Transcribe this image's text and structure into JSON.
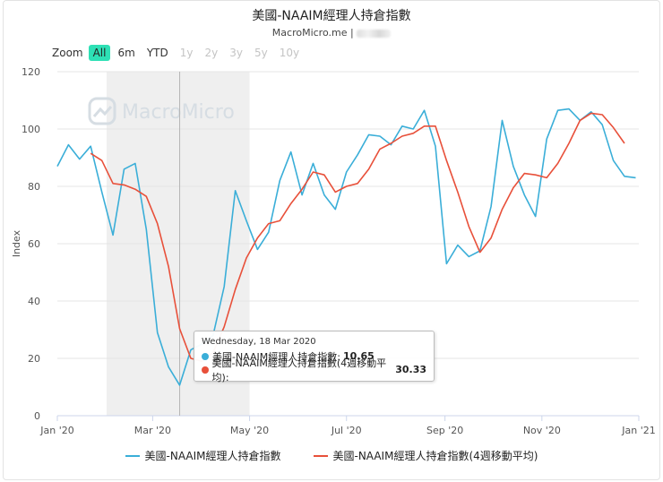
{
  "header": {
    "title": "美國-NAAIM經理人持倉指數",
    "subtitle": "MacroMicro.me |"
  },
  "zoom": {
    "label": "Zoom",
    "buttons": [
      {
        "label": "All",
        "state": "active"
      },
      {
        "label": "6m",
        "state": "normal"
      },
      {
        "label": "YTD",
        "state": "normal"
      },
      {
        "label": "1y",
        "state": "disabled"
      },
      {
        "label": "2y",
        "state": "disabled"
      },
      {
        "label": "3y",
        "state": "disabled"
      },
      {
        "label": "5y",
        "state": "disabled"
      },
      {
        "label": "10y",
        "state": "disabled"
      }
    ]
  },
  "watermark": "MacroMicro",
  "tooltip": {
    "date": "Wednesday, 18 Mar 2020",
    "rows": [
      {
        "label": "美國-NAAIM經理人持倉指數:",
        "value": "10.65",
        "color": "#3aaed8"
      },
      {
        "label": "美國-NAAIM經理人持倉指數(4週移動平均):",
        "value": "30.33",
        "color": "#e8503a"
      }
    ]
  },
  "chart_data": {
    "type": "line",
    "ylabel": "Index",
    "ylim": [
      0,
      120
    ],
    "yticks": [
      0,
      20,
      40,
      60,
      80,
      100,
      120
    ],
    "xlim": [
      "2020-01-01",
      "2021-01-01"
    ],
    "xticks": [
      {
        "date": "2020-01-01",
        "label": "Jan '20"
      },
      {
        "date": "2020-03-01",
        "label": "Mar '20"
      },
      {
        "date": "2020-05-01",
        "label": "May '20"
      },
      {
        "date": "2020-07-01",
        "label": "Jul '20"
      },
      {
        "date": "2020-09-01",
        "label": "Sep '20"
      },
      {
        "date": "2020-11-01",
        "label": "Nov '20"
      },
      {
        "date": "2021-01-01",
        "label": "Jan '21"
      }
    ],
    "shaded_range": [
      "2020-02-01",
      "2020-05-01"
    ],
    "crosshair_x": "2020-03-18",
    "dates": [
      "2020-01-01",
      "2020-01-08",
      "2020-01-15",
      "2020-01-22",
      "2020-01-29",
      "2020-02-05",
      "2020-02-12",
      "2020-02-19",
      "2020-02-26",
      "2020-03-04",
      "2020-03-11",
      "2020-03-18",
      "2020-03-25",
      "2020-04-01",
      "2020-04-08",
      "2020-04-15",
      "2020-04-22",
      "2020-04-29",
      "2020-05-06",
      "2020-05-13",
      "2020-05-20",
      "2020-05-27",
      "2020-06-03",
      "2020-06-10",
      "2020-06-17",
      "2020-06-24",
      "2020-07-01",
      "2020-07-08",
      "2020-07-15",
      "2020-07-22",
      "2020-07-29",
      "2020-08-05",
      "2020-08-12",
      "2020-08-19",
      "2020-08-26",
      "2020-09-02",
      "2020-09-09",
      "2020-09-16",
      "2020-09-23",
      "2020-09-30",
      "2020-10-07",
      "2020-10-14",
      "2020-10-21",
      "2020-10-28",
      "2020-11-04",
      "2020-11-11",
      "2020-11-18",
      "2020-11-25",
      "2020-12-02",
      "2020-12-09",
      "2020-12-16",
      "2020-12-23",
      "2020-12-30"
    ],
    "series": [
      {
        "name": "美國-NAAIM經理人持倉指數",
        "color": "#3aaed8",
        "values": [
          87,
          94.5,
          89.5,
          94,
          78,
          63,
          86,
          88,
          65,
          29,
          17,
          10.65,
          23,
          25,
          28,
          45,
          78.5,
          68,
          58,
          64,
          82,
          92,
          77,
          88,
          77,
          72,
          85,
          91,
          98,
          97.5,
          94.5,
          101,
          100,
          106.5,
          94,
          53,
          59.5,
          55.5,
          57.5,
          73,
          103,
          87,
          77,
          69.5,
          96.5,
          106.5,
          107,
          103,
          106,
          101.5,
          89,
          83.5,
          83
        ]
      },
      {
        "name": "美國-NAAIM經理人持倉指數(4週移動平均)",
        "color": "#e8503a",
        "values": [
          null,
          null,
          null,
          91.5,
          89,
          81,
          80.5,
          79,
          76.5,
          67,
          52,
          30.33,
          20,
          19,
          22,
          31,
          44,
          55,
          62,
          67,
          68,
          74,
          79,
          85,
          84,
          78,
          80,
          81,
          86,
          93,
          95,
          97.5,
          98.5,
          101,
          101,
          89,
          78,
          66,
          57,
          62,
          72,
          79.5,
          84.5,
          84,
          83,
          88,
          95,
          103,
          105.5,
          105,
          100.5,
          95,
          null
        ]
      }
    ]
  }
}
